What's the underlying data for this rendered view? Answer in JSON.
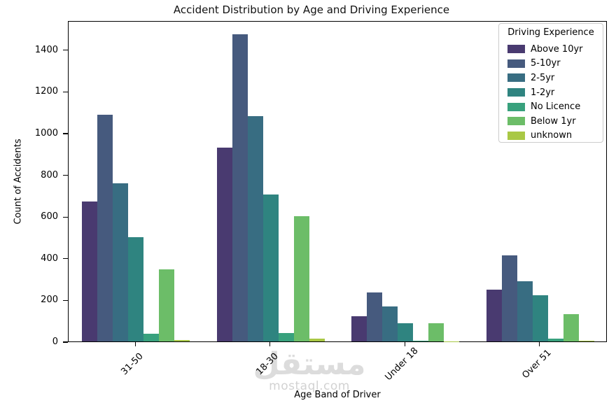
{
  "title": "Accident Distribution by Age and Driving Experience",
  "watermark": {
    "logo": "مستقل",
    "url": "mostaql.com"
  },
  "chart_data": {
    "type": "bar",
    "title": "Accident Distribution by Age and Driving Experience",
    "xlabel": "Age Band of Driver",
    "ylabel": "Count of Accidents",
    "categories": [
      "31-50",
      "18-30",
      "Under 18",
      "Over 51"
    ],
    "series": [
      {
        "name": "Above 10yr",
        "color": "#493a70",
        "values": [
          671,
          931,
          120,
          250
        ]
      },
      {
        "name": "5-10yr",
        "color": "#465a7e",
        "values": [
          1086,
          1473,
          234,
          414
        ]
      },
      {
        "name": "2-5yr",
        "color": "#386d82",
        "values": [
          757,
          1081,
          168,
          287
        ]
      },
      {
        "name": "1-2yr",
        "color": "#2f8480",
        "values": [
          501,
          703,
          88,
          222
        ]
      },
      {
        "name": "No Licence",
        "color": "#38a17d",
        "values": [
          36,
          41,
          5,
          13
        ]
      },
      {
        "name": "Below 1yr",
        "color": "#6cbd68",
        "values": [
          346,
          600,
          86,
          131
        ]
      },
      {
        "name": "unknown",
        "color": "#a9c845",
        "values": [
          8,
          15,
          1,
          4
        ]
      }
    ],
    "ylim": [
      0,
      1540
    ],
    "yticks": [
      0,
      200,
      400,
      600,
      800,
      1000,
      1200,
      1400
    ],
    "legend_title": "Driving Experience",
    "legend_position": "upper right",
    "grid": false,
    "x_tick_rotation": 45
  }
}
